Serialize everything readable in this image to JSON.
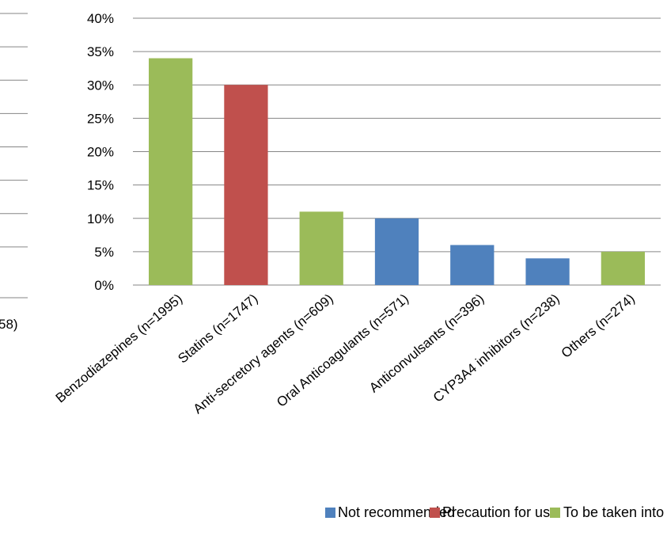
{
  "chart_data": {
    "type": "bar",
    "categories": [
      "Benzodiazepines (n=1995)",
      "Statins (n=1747)",
      "Anti-secretory agents (n=609)",
      "Oral Anticoagulants (n=571)",
      "Anticonvulsants (n=396)",
      "CYP3A4 inhibitors (n=238)",
      "Others (n=274)"
    ],
    "values": [
      34,
      30,
      11,
      10,
      6,
      4,
      5
    ],
    "value_unit": "%",
    "bar_class": [
      "To be taken into account",
      "Precaution for use",
      "To be taken into account",
      "Not recommended",
      "Not recommended",
      "Not recommended",
      "To be taken into account"
    ],
    "ylim": [
      0,
      40
    ],
    "yticks": [
      "0%",
      "5%",
      "10%",
      "15%",
      "20%",
      "25%",
      "30%",
      "35%",
      "40%"
    ],
    "ytick_values": [
      0,
      5,
      10,
      15,
      20,
      25,
      30,
      35,
      40
    ],
    "grid": true,
    "legend_position": "bottom",
    "legend": [
      {
        "label": "Not recommended",
        "color": "#4f81bd"
      },
      {
        "label": "Precaution for use",
        "color": "#c0504d"
      },
      {
        "label": "To be taken into account",
        "color": "#9bbb59"
      }
    ]
  },
  "partial_left_chart": {
    "fragment_text": "58)"
  },
  "colors": {
    "grid": "#868686",
    "axis": "#868686",
    "text": "#000000"
  }
}
